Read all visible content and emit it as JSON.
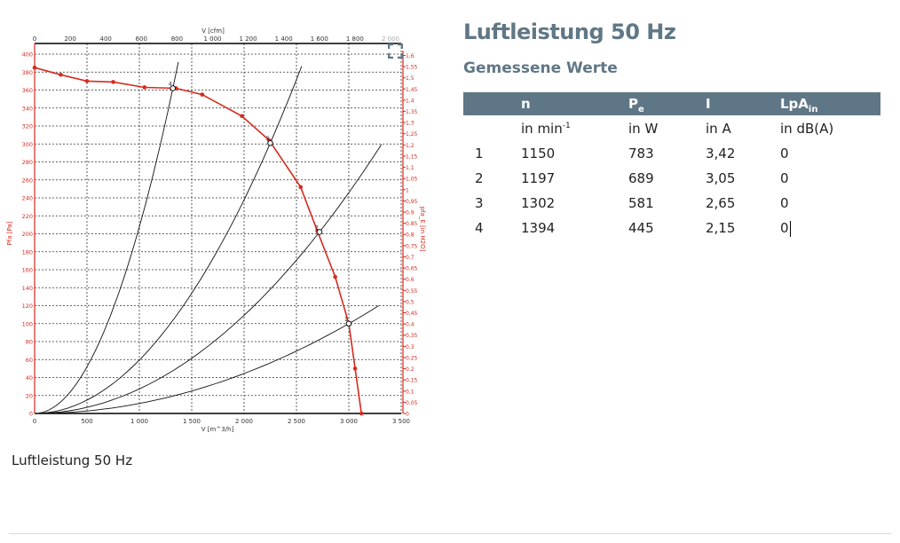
{
  "heading": "Luftleistung 50 Hz",
  "subheading": "Gemessene Werte",
  "caption": "Luftleistung 50 Hz",
  "accent_color": "#5f7686",
  "table": {
    "columns": [
      {
        "label": "n",
        "sub": "",
        "unit": "in min",
        "unit_sup": "-1"
      },
      {
        "label": "P",
        "sub": "e",
        "unit": "in W",
        "unit_sup": ""
      },
      {
        "label": "I",
        "sub": "",
        "unit": "in A",
        "unit_sup": ""
      },
      {
        "label": "LpA",
        "sub": "in",
        "unit": "in dB(A)",
        "unit_sup": ""
      }
    ],
    "rows": [
      [
        "1",
        "1150",
        "783",
        "3,42",
        "0"
      ],
      [
        "2",
        "1197",
        "689",
        "3,05",
        "0"
      ],
      [
        "3",
        "1302",
        "581",
        "2,65",
        "0"
      ],
      [
        "4",
        "1394",
        "445",
        "2,15",
        "0"
      ]
    ]
  },
  "chart_data": {
    "type": "line",
    "xlabel": "V [m^3/h]",
    "xlabel_top": "V [cfm]",
    "ylabel": "Pfa [Pa]",
    "ylabel_right": "pfa_E [in H2O]",
    "xlim": [
      0,
      3500
    ],
    "ylim": [
      0,
      400
    ],
    "x_ticks": [
      "0",
      "500",
      "1 000",
      "1 500",
      "2 000",
      "2 500",
      "3 000",
      "3 500"
    ],
    "x_top_ticks": [
      "0",
      "200",
      "400",
      "600",
      "800",
      "1 000",
      "1 200",
      "1 400",
      "1 600",
      "1 800",
      "2 000"
    ],
    "y_ticks": [
      "0",
      "20",
      "40",
      "60",
      "80",
      "100",
      "120",
      "140",
      "160",
      "180",
      "200",
      "220",
      "240",
      "260",
      "280",
      "300",
      "320",
      "340",
      "360",
      "380",
      "400"
    ],
    "y_right_ticks": [
      "0",
      "0,05",
      "0,1",
      "0,15",
      "0,2",
      "0,25",
      "0,3",
      "0,35",
      "0,4",
      "0,45",
      "0,5",
      "0,55",
      "0,6",
      "0,65",
      "0,7",
      "0,75",
      "0,8",
      "0,85",
      "0,9",
      "0,95",
      "1",
      "1,05",
      "1,1",
      "1,15",
      "1,2",
      "1,25",
      "1,3",
      "1,35",
      "1,4",
      "1,45",
      "1,5",
      "1,55",
      "1,6"
    ],
    "grid": true,
    "fan_curve_color": "#d62a1e",
    "fan_curve": [
      [
        0,
        385
      ],
      [
        250,
        377
      ],
      [
        500,
        370
      ],
      [
        750,
        369
      ],
      [
        1050,
        363
      ],
      [
        1350,
        362
      ],
      [
        1600,
        355
      ],
      [
        1980,
        331
      ],
      [
        2240,
        304
      ],
      [
        2540,
        252
      ],
      [
        2700,
        203
      ],
      [
        2870,
        152
      ],
      [
        3000,
        100
      ],
      [
        3060,
        50
      ],
      [
        3120,
        0
      ]
    ],
    "operating_points": [
      {
        "label": "4",
        "x": 1320,
        "y": 362
      },
      {
        "label": "3",
        "x": 2250,
        "y": 301
      },
      {
        "label": "2",
        "x": 2720,
        "y": 202
      },
      {
        "label": "1",
        "x": 3000,
        "y": 100
      }
    ],
    "system_curves": [
      {
        "through": [
          1320,
          362
        ],
        "x_max": 1372
      },
      {
        "through": [
          2250,
          301
        ],
        "x_max": 2550
      },
      {
        "through": [
          2720,
          202
        ],
        "x_max": 3312
      },
      {
        "through": [
          3000,
          100
        ],
        "x_max": 3286
      }
    ]
  }
}
